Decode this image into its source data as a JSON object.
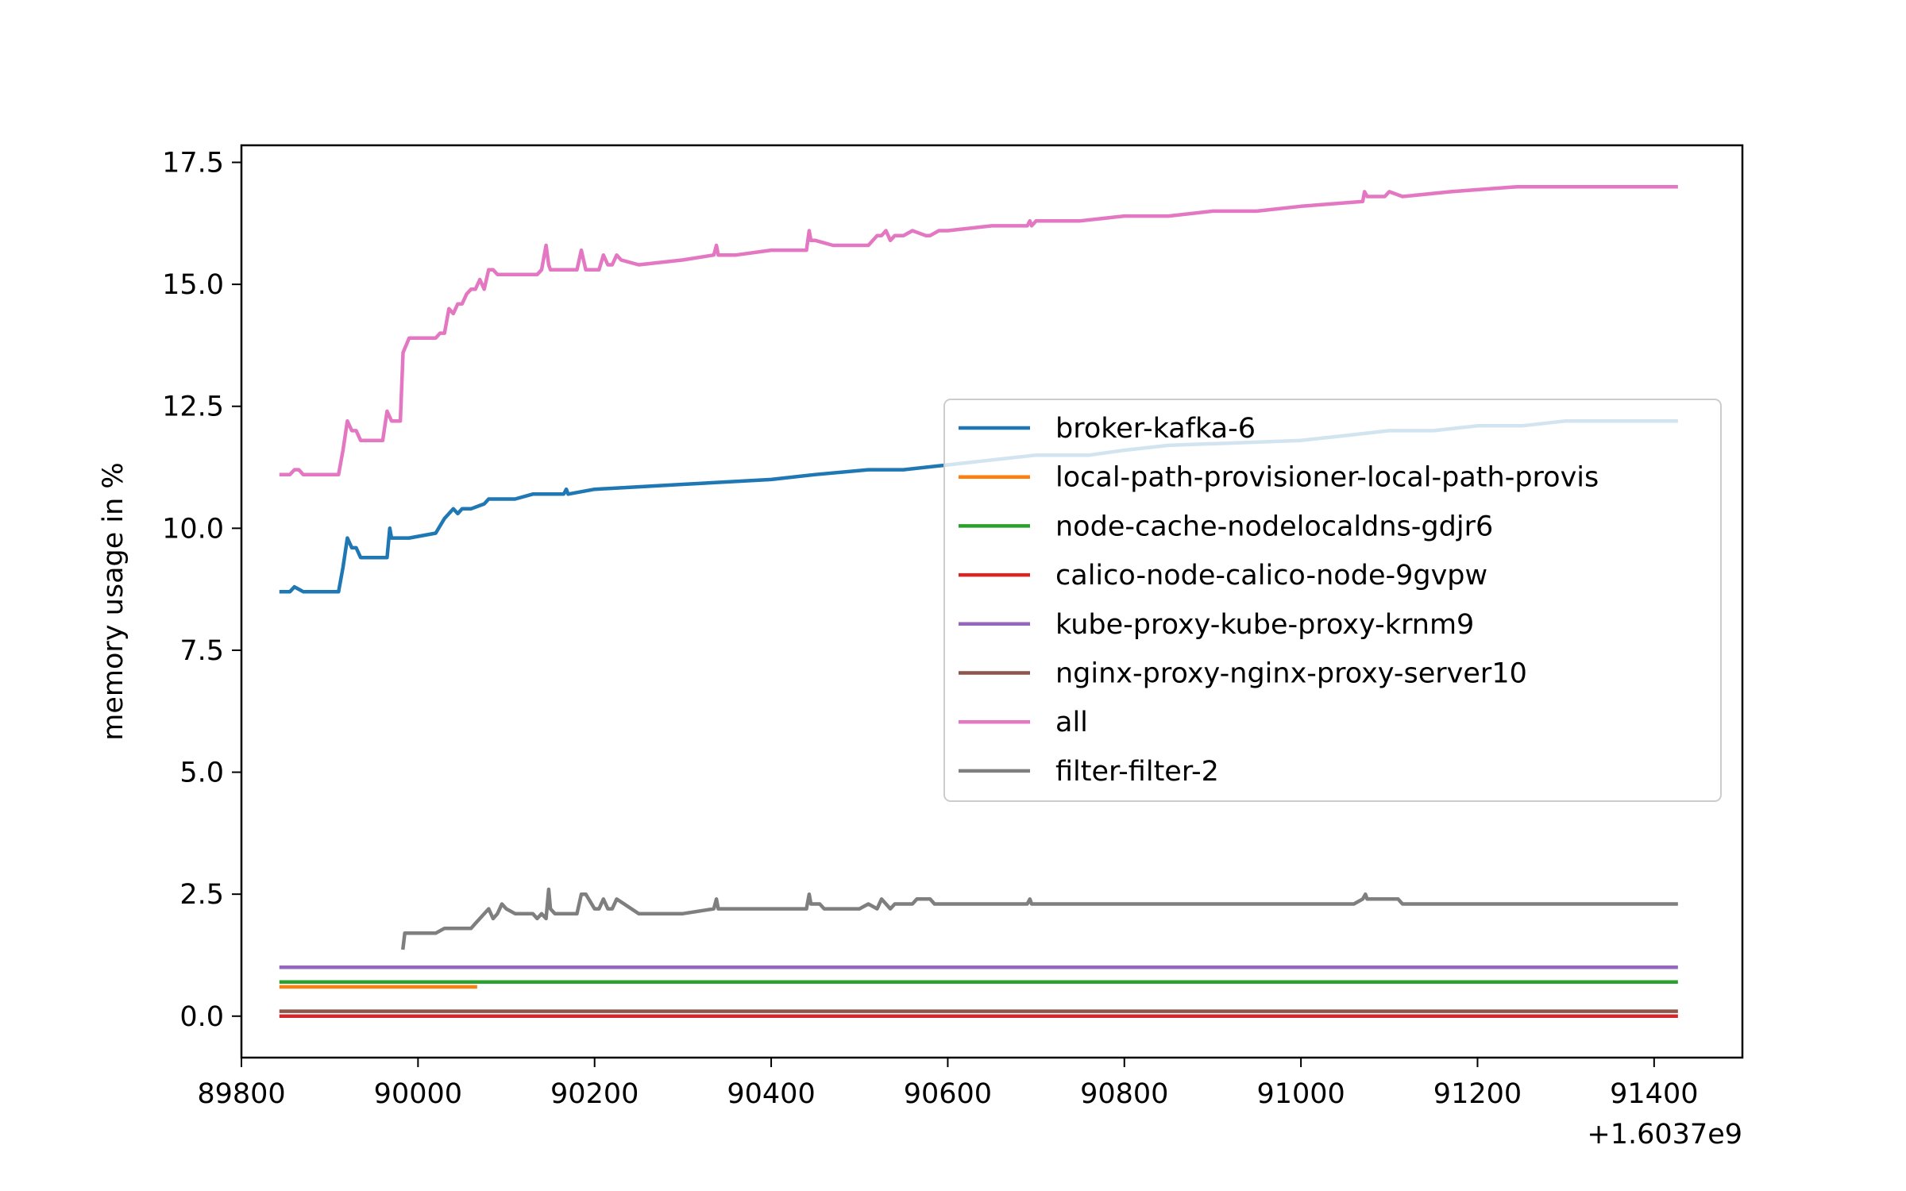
{
  "chart_data": {
    "type": "line",
    "title": "",
    "xlabel": "",
    "ylabel": "memory usage in %",
    "x_offset_label": "+1.6037e9",
    "xlim": [
      89800,
      91500
    ],
    "ylim": [
      -0.85,
      17.85
    ],
    "x_ticks": [
      89800,
      90000,
      90200,
      90400,
      90600,
      90800,
      91000,
      91200,
      91400
    ],
    "x_tick_labels": [
      "89800",
      "90000",
      "90200",
      "90400",
      "90600",
      "90800",
      "91000",
      "91200",
      "91400"
    ],
    "y_ticks": [
      0,
      2.5,
      5,
      7.5,
      10,
      12.5,
      15,
      17.5
    ],
    "y_tick_labels": [
      "0.0",
      "2.5",
      "5.0",
      "7.5",
      "10.0",
      "12.5",
      "15.0",
      "17.5"
    ],
    "grid": false,
    "legend_position": "center-right",
    "series": [
      {
        "name": "broker-kafka-6",
        "color": "#1f77b4",
        "x": [
          89845,
          89855,
          89860,
          89870,
          89910,
          89915,
          89920,
          89925,
          89930,
          89935,
          89940,
          89965,
          89968,
          89970,
          89975,
          89980,
          89990,
          90020,
          90030,
          90035,
          90040,
          90045,
          90050,
          90055,
          90060,
          90075,
          90080,
          90100,
          90110,
          90130,
          90150,
          90165,
          90168,
          90170,
          90200,
          90300,
          90400,
          90450,
          90510,
          90550,
          90600,
          90650,
          90700,
          90760,
          90800,
          90850,
          91000,
          91050,
          91100,
          91150,
          91200,
          91250,
          91300,
          91350,
          91425
        ],
        "y": [
          8.7,
          8.7,
          8.8,
          8.7,
          8.7,
          9.2,
          9.8,
          9.6,
          9.6,
          9.4,
          9.4,
          9.4,
          10.0,
          9.8,
          9.8,
          9.8,
          9.8,
          9.9,
          10.2,
          10.3,
          10.4,
          10.3,
          10.4,
          10.4,
          10.4,
          10.5,
          10.6,
          10.6,
          10.6,
          10.7,
          10.7,
          10.7,
          10.8,
          10.7,
          10.8,
          10.9,
          11.0,
          11.1,
          11.2,
          11.2,
          11.3,
          11.4,
          11.5,
          11.5,
          11.6,
          11.7,
          11.8,
          11.9,
          12.0,
          12.0,
          12.1,
          12.1,
          12.2,
          12.2,
          12.2
        ]
      },
      {
        "name": "local-path-provisioner-local-path-provis",
        "color": "#ff7f0e",
        "x": [
          89845,
          90065
        ],
        "y": [
          0.6,
          0.6
        ]
      },
      {
        "name": "node-cache-nodelocaldns-gdjr6",
        "color": "#2ca02c",
        "x": [
          89845,
          91425
        ],
        "y": [
          0.7,
          0.7
        ]
      },
      {
        "name": "calico-node-calico-node-9gvpw",
        "color": "#d62728",
        "x": [
          89845,
          91425
        ],
        "y": [
          0.0,
          0.0
        ]
      },
      {
        "name": "kube-proxy-kube-proxy-krnm9",
        "color": "#9467bd",
        "x": [
          89845,
          91425
        ],
        "y": [
          1.0,
          1.0
        ]
      },
      {
        "name": "nginx-proxy-nginx-proxy-server10",
        "color": "#8c564b",
        "x": [
          89845,
          91425
        ],
        "y": [
          0.1,
          0.1
        ]
      },
      {
        "name": "all",
        "color": "#e377c2",
        "x": [
          89845,
          89855,
          89860,
          89865,
          89870,
          89910,
          89915,
          89920,
          89925,
          89930,
          89935,
          89940,
          89960,
          89965,
          89970,
          89980,
          89983,
          89990,
          90020,
          90025,
          90030,
          90035,
          90040,
          90045,
          90050,
          90055,
          90060,
          90065,
          90070,
          90075,
          90080,
          90085,
          90090,
          90100,
          90105,
          90135,
          90140,
          90145,
          90148,
          90150,
          90155,
          90160,
          90180,
          90185,
          90190,
          90205,
          90210,
          90215,
          90220,
          90225,
          90230,
          90250,
          90300,
          90335,
          90338,
          90340,
          90360,
          90400,
          90440,
          90443,
          90445,
          90450,
          90470,
          90510,
          90520,
          90525,
          90530,
          90535,
          90540,
          90550,
          90560,
          90575,
          90580,
          90590,
          90600,
          90650,
          90690,
          90693,
          90695,
          90700,
          90750,
          90800,
          90850,
          90900,
          90950,
          91000,
          91070,
          91072,
          91075,
          91095,
          91100,
          91115,
          91170,
          91245,
          91300,
          91425
        ],
        "y": [
          11.1,
          11.1,
          11.2,
          11.2,
          11.1,
          11.1,
          11.6,
          12.2,
          12.0,
          12.0,
          11.8,
          11.8,
          11.8,
          12.4,
          12.2,
          12.2,
          13.6,
          13.9,
          13.9,
          14.0,
          14.0,
          14.5,
          14.4,
          14.6,
          14.6,
          14.8,
          14.9,
          14.9,
          15.1,
          14.9,
          15.3,
          15.3,
          15.2,
          15.2,
          15.2,
          15.2,
          15.3,
          15.8,
          15.4,
          15.3,
          15.3,
          15.3,
          15.3,
          15.7,
          15.3,
          15.3,
          15.6,
          15.4,
          15.4,
          15.6,
          15.5,
          15.4,
          15.5,
          15.6,
          15.8,
          15.6,
          15.6,
          15.7,
          15.7,
          16.1,
          15.9,
          15.9,
          15.8,
          15.8,
          16.0,
          16.0,
          16.1,
          15.9,
          16.0,
          16.0,
          16.1,
          16.0,
          16.0,
          16.1,
          16.1,
          16.2,
          16.2,
          16.3,
          16.2,
          16.3,
          16.3,
          16.4,
          16.4,
          16.5,
          16.5,
          16.6,
          16.7,
          16.9,
          16.8,
          16.8,
          16.9,
          16.8,
          16.9,
          17.0,
          17.0,
          17.0
        ]
      },
      {
        "name": "filter-filter-2",
        "color": "#7f7f7f",
        "x": [
          89983,
          89985,
          89990,
          90020,
          90030,
          90040,
          90060,
          90065,
          90070,
          90080,
          90085,
          90090,
          90095,
          90100,
          90110,
          90130,
          90135,
          90140,
          90145,
          90148,
          90150,
          90155,
          90160,
          90180,
          90185,
          90190,
          90200,
          90205,
          90210,
          90215,
          90220,
          90225,
          90250,
          90300,
          90335,
          90338,
          90340,
          90360,
          90400,
          90440,
          90443,
          90445,
          90455,
          90460,
          90500,
          90510,
          90520,
          90525,
          90530,
          90535,
          90540,
          90560,
          90565,
          90580,
          90585,
          90600,
          90690,
          90693,
          90695,
          90700,
          91060,
          91070,
          91073,
          91075,
          91110,
          91115,
          91200,
          91300,
          91425
        ],
        "y": [
          1.4,
          1.7,
          1.7,
          1.7,
          1.8,
          1.8,
          1.8,
          1.9,
          2.0,
          2.2,
          2.0,
          2.1,
          2.3,
          2.2,
          2.1,
          2.1,
          2.0,
          2.1,
          2.0,
          2.6,
          2.2,
          2.1,
          2.1,
          2.1,
          2.5,
          2.5,
          2.2,
          2.2,
          2.4,
          2.2,
          2.2,
          2.4,
          2.1,
          2.1,
          2.2,
          2.4,
          2.2,
          2.2,
          2.2,
          2.2,
          2.5,
          2.3,
          2.3,
          2.2,
          2.2,
          2.3,
          2.2,
          2.4,
          2.3,
          2.2,
          2.3,
          2.3,
          2.4,
          2.4,
          2.3,
          2.3,
          2.3,
          2.4,
          2.3,
          2.3,
          2.3,
          2.4,
          2.5,
          2.4,
          2.4,
          2.3,
          2.3,
          2.3,
          2.3
        ]
      }
    ]
  }
}
